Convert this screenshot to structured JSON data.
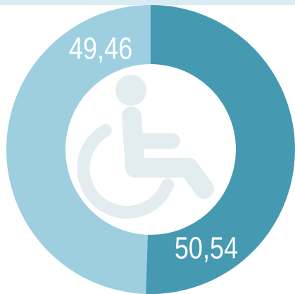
{
  "chart_data": {
    "type": "pie",
    "values": [
      50.54,
      49.46
    ],
    "value_labels": [
      "50,54",
      "49,46"
    ],
    "colors": [
      "#4599b1",
      "#9dcfe0"
    ]
  }
}
